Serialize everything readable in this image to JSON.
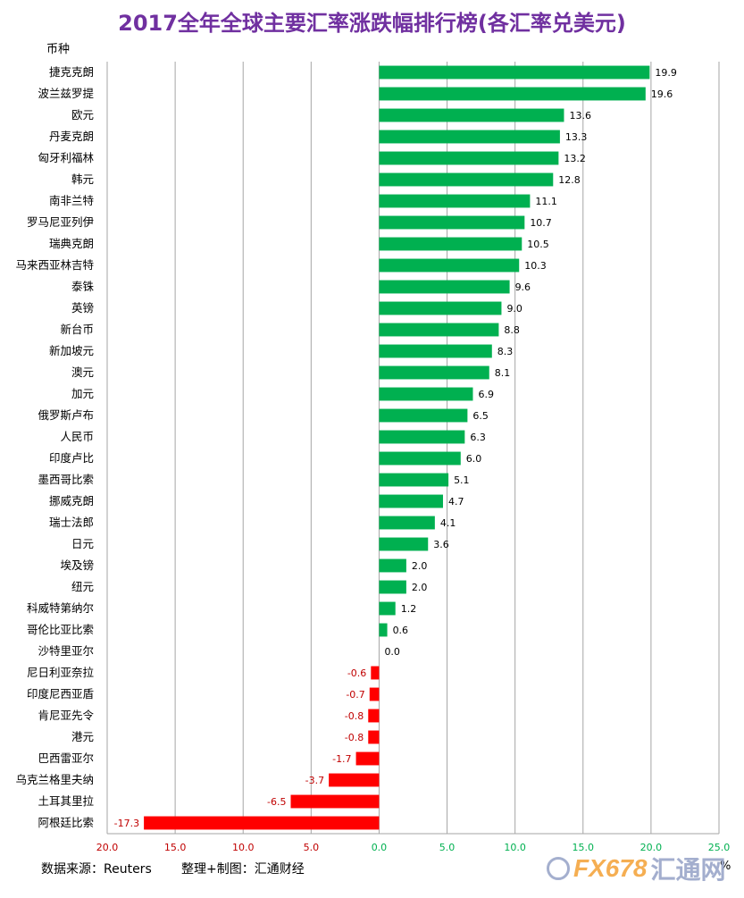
{
  "title": "2017全年全球主要汇率涨跌幅排行榜(各汇率兑美元)",
  "footer": {
    "source": "数据来源：Reuters",
    "credit": "整理+制图：汇通财经"
  },
  "logo": {
    "text": "FX678",
    "cn": "汇通网"
  },
  "colors": {
    "positive": "#00b050",
    "negative": "#ff0000",
    "title": "#7030a0",
    "neg_axis_text": "#c00000",
    "pos_axis_text": "#00b050",
    "grid": "#a6a6a6"
  },
  "chart_data": {
    "type": "bar",
    "orientation": "horizontal",
    "title": "2017全年全球主要汇率涨跌幅排行榜(各汇率兑美元)",
    "category_axis_label": "币种",
    "value_unit": "%",
    "xlim": [
      -20,
      25
    ],
    "xticks": [
      -20,
      -15,
      -10,
      -5,
      0,
      5,
      10,
      15,
      20,
      25
    ],
    "xtick_labels": [
      "20.0",
      "15.0",
      "10.0",
      "5.0",
      "0.0",
      "5.0",
      "10.0",
      "15.0",
      "20.0",
      "25.0"
    ],
    "grid": true,
    "categories": [
      "捷克克朗",
      "波兰兹罗提",
      "欧元",
      "丹麦克朗",
      "匈牙利福林",
      "韩元",
      "南非兰特",
      "罗马尼亚列伊",
      "瑞典克朗",
      "马来西亚林吉特",
      "泰铢",
      "英镑",
      "新台币",
      "新加坡元",
      "澳元",
      "加元",
      "俄罗斯卢布",
      "人民币",
      "印度卢比",
      "墨西哥比索",
      "挪威克朗",
      "瑞士法郎",
      "日元",
      "埃及镑",
      "纽元",
      "科威特第纳尔",
      "哥伦比亚比索",
      "沙特里亚尔",
      "尼日利亚奈拉",
      "印度尼西亚盾",
      "肯尼亚先令",
      "港元",
      "巴西雷亚尔",
      "乌克兰格里夫纳",
      "土耳其里拉",
      "阿根廷比索"
    ],
    "values": [
      19.9,
      19.6,
      13.6,
      13.3,
      13.2,
      12.8,
      11.1,
      10.7,
      10.5,
      10.3,
      9.6,
      9.0,
      8.8,
      8.3,
      8.1,
      6.9,
      6.5,
      6.3,
      6.0,
      5.1,
      4.7,
      4.1,
      3.6,
      2.0,
      2.0,
      1.2,
      0.6,
      0.0,
      -0.6,
      -0.7,
      -0.8,
      -0.8,
      -1.7,
      -3.7,
      -6.5,
      -17.3
    ],
    "value_labels": [
      "19.9",
      "19.6",
      "13.6",
      "13.3",
      "13.2",
      "12.8",
      "11.1",
      "10.7",
      "10.5",
      "10.3",
      "9.6",
      "9.0",
      "8.8",
      "8.3",
      "8.1",
      "6.9",
      "6.5",
      "6.3",
      "6.0",
      "5.1",
      "4.7",
      "4.1",
      "3.6",
      "2.0",
      "2.0",
      "1.2",
      "0.6",
      "0.0",
      "-0.6",
      "-0.7",
      "-0.8",
      "-0.8",
      "-1.7",
      "-3.7",
      "-6.5",
      "-17.3"
    ]
  }
}
